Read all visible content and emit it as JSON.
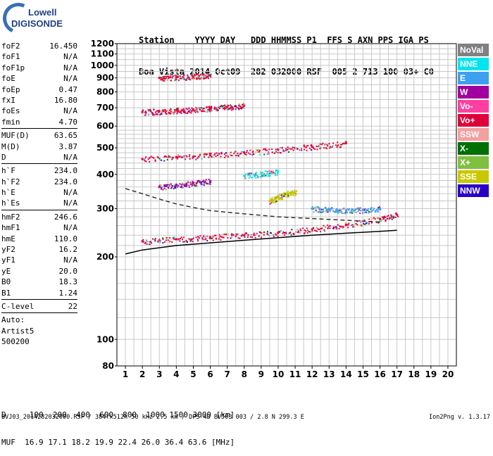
{
  "logo": {
    "line1": "Lowell",
    "line2": "DIGISONDE"
  },
  "header": {
    "row1": "Station    YYYY DAY   DDD HHMMSS P1  FFS S AXN PPS IGA PS",
    "row2": "Boa Vista 2014 Oct09  282 032000 RSF  005 2 713 100 03+ C0"
  },
  "params": [
    {
      "name": "foF2",
      "value": "16.450"
    },
    {
      "name": "foF1",
      "value": "N/A"
    },
    {
      "name": "foF1p",
      "value": "N/A"
    },
    {
      "name": "foE",
      "value": "N/A"
    },
    {
      "name": "foEp",
      "value": "0.47"
    },
    {
      "name": "fxI",
      "value": "16.80"
    },
    {
      "name": "foEs",
      "value": "N/A"
    },
    {
      "name": "fmin",
      "value": "4.70"
    },
    {
      "name": "MUF(D)",
      "value": "63.65"
    },
    {
      "name": "M(D)",
      "value": "3.87"
    },
    {
      "name": "D",
      "value": "N/A"
    },
    {
      "name": "h`F",
      "value": "234.0"
    },
    {
      "name": "h`F2",
      "value": "234.0"
    },
    {
      "name": "h`E",
      "value": "N/A"
    },
    {
      "name": "h`Es",
      "value": "N/A"
    },
    {
      "name": "hmF2",
      "value": "246.6"
    },
    {
      "name": "hmF1",
      "value": "N/A"
    },
    {
      "name": "hmE",
      "value": "110.0"
    },
    {
      "name": "yF2",
      "value": "16.2"
    },
    {
      "name": "yF1",
      "value": "N/A"
    },
    {
      "name": "yE",
      "value": "20.0"
    },
    {
      "name": "B0",
      "value": "18.3"
    },
    {
      "name": "B1",
      "value": "1.24"
    },
    {
      "name": "C-level",
      "value": "22"
    },
    {
      "name": "Auto:",
      "value": ""
    },
    {
      "name": "Artist5",
      "value": ""
    },
    {
      "name": "500200",
      "value": ""
    }
  ],
  "legend": [
    {
      "label": "NoVal",
      "color": "#808080"
    },
    {
      "label": "NNE",
      "color": "#00e5ee"
    },
    {
      "label": "E",
      "color": "#3da0f0"
    },
    {
      "label": "W",
      "color": "#a000a0"
    },
    {
      "label": "Vo-",
      "color": "#ff3fa0"
    },
    {
      "label": "Vo+",
      "color": "#e0003a"
    },
    {
      "label": "SSW",
      "color": "#f2a0a0"
    },
    {
      "label": "X-",
      "color": "#007000"
    },
    {
      "label": "X+",
      "color": "#80c040"
    },
    {
      "label": "SSE",
      "color": "#c8c800"
    },
    {
      "label": "NNW",
      "color": "#2a00c8"
    }
  ],
  "bottom": {
    "row1": "D     100  200  400  600  800  1000 1500 3000 [km]",
    "row2": "MUF  16.9 17.1 18.2 19.9 22.4 26.0 36.4 63.6 [MHz]"
  },
  "footer": "BVJ03_2014282032000.RSF / 384fx512h 50 kHz 2.5 km / DPS-4D BVJ03 003 / 2.8 N 299.3 E",
  "version": "Ion2Png v. 1.3.17",
  "chart_data": {
    "type": "scatter",
    "xlim": [
      0.5,
      20.5
    ],
    "ylim": [
      80,
      1200
    ],
    "x_ticks": [
      1,
      2,
      3,
      4,
      5,
      6,
      7,
      8,
      9,
      10,
      11,
      12,
      13,
      14,
      15,
      16,
      17,
      18,
      19,
      20
    ],
    "y_ticks": [
      80,
      100,
      200,
      300,
      400,
      500,
      600,
      700,
      800,
      900,
      1000,
      1100,
      1200
    ],
    "y_log_scale": true,
    "grid": true,
    "traces": [
      {
        "name": "F2 O-trace",
        "color": "#e0003a",
        "x": [
          2.0,
          4.0,
          6.0,
          8.0,
          10.0,
          12.0,
          14.0,
          16.0,
          17.0
        ],
        "y": [
          228,
          232,
          236,
          240,
          245,
          252,
          262,
          275,
          285
        ]
      },
      {
        "name": "F2 2-hop",
        "color": "#e0003a",
        "x": [
          2.0,
          4.0,
          6.0,
          8.0,
          10.0,
          12.0,
          14.0
        ],
        "y": [
          455,
          462,
          470,
          480,
          492,
          505,
          520
        ]
      },
      {
        "name": "F2 3-hop",
        "color": "#e0003a",
        "x": [
          2.0,
          3.0,
          4.0,
          5.0,
          6.0,
          7.0,
          8.0
        ],
        "y": [
          675,
          680,
          685,
          690,
          698,
          705,
          712
        ]
      },
      {
        "name": "F2 4-hop",
        "color": "#e0003a",
        "x": [
          3.0,
          4.0,
          5.0,
          6.0
        ],
        "y": [
          900,
          905,
          910,
          920
        ]
      },
      {
        "name": "E-W echoes",
        "color": "#3da0f0",
        "x": [
          12.0,
          13.0,
          14.0,
          15.0,
          16.0
        ],
        "y": [
          300,
          298,
          295,
          297,
          300
        ]
      },
      {
        "name": "Oblique",
        "color": "#00e5ee",
        "x": [
          8.0,
          9.0,
          10.0
        ],
        "y": [
          395,
          402,
          410
        ]
      },
      {
        "name": "SSE echoes",
        "color": "#c8c800",
        "x": [
          9.5,
          10.0,
          10.5,
          11.0
        ],
        "y": [
          320,
          330,
          340,
          345
        ]
      },
      {
        "name": "West echoes",
        "color": "#a000a0",
        "x": [
          3.0,
          4.0,
          5.0,
          6.0
        ],
        "y": [
          360,
          365,
          372,
          378
        ]
      }
    ],
    "profile_curves": [
      {
        "name": "black profile",
        "color": "#000000",
        "x": [
          1.0,
          2.0,
          4.0,
          6.0,
          8.0,
          10.0,
          12.0,
          14.0,
          16.0,
          17.0
        ],
        "y": [
          205,
          212,
          220,
          225,
          230,
          235,
          240,
          244,
          248,
          250
        ],
        "style": "solid"
      },
      {
        "name": "dashed profile",
        "color": "#333333",
        "x": [
          1.0,
          2.0,
          3.0,
          4.0,
          5.0,
          6.0,
          8.0,
          10.0,
          12.0,
          14.0,
          16.0
        ],
        "y": [
          355,
          340,
          325,
          312,
          303,
          295,
          287,
          280,
          276,
          272,
          268
        ],
        "style": "dashed"
      }
    ]
  }
}
